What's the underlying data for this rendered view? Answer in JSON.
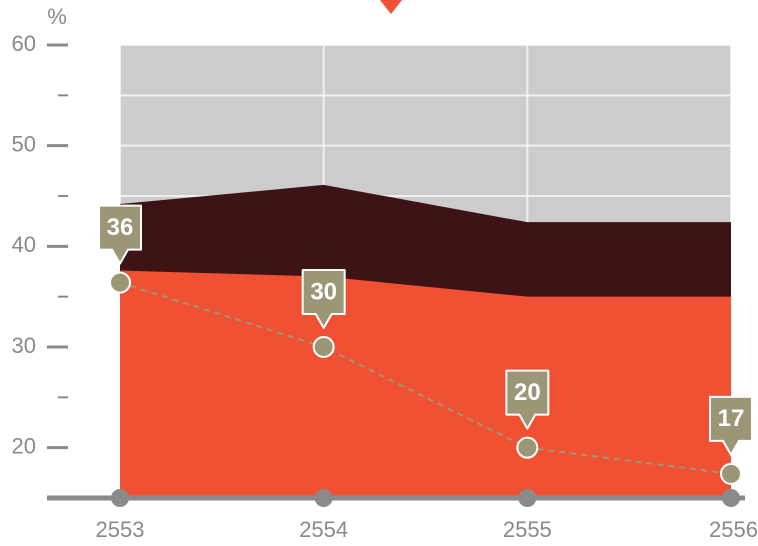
{
  "chart_data": {
    "type": "area",
    "y_axis_label": "%",
    "categories": [
      "2553",
      "2554",
      "2555",
      "2556"
    ],
    "series": [
      {
        "color": "#3d1316",
        "values": [
          44.2,
          46.1,
          42.4,
          42.4
        ]
      },
      {
        "color": "#f05133",
        "values": [
          37.6,
          37.0,
          35.0,
          35.0
        ]
      }
    ],
    "line": {
      "color": "#9b9776",
      "values": [
        36.4,
        30,
        20,
        17.4
      ],
      "value_labels": [
        "36",
        "30",
        "20",
        "17"
      ]
    },
    "ylim": [
      15,
      60
    ],
    "yticks": [
      20,
      30,
      40,
      50,
      60
    ],
    "yminorticks": [
      25,
      35,
      45,
      55
    ],
    "grid": true,
    "background": "#cccccc"
  }
}
